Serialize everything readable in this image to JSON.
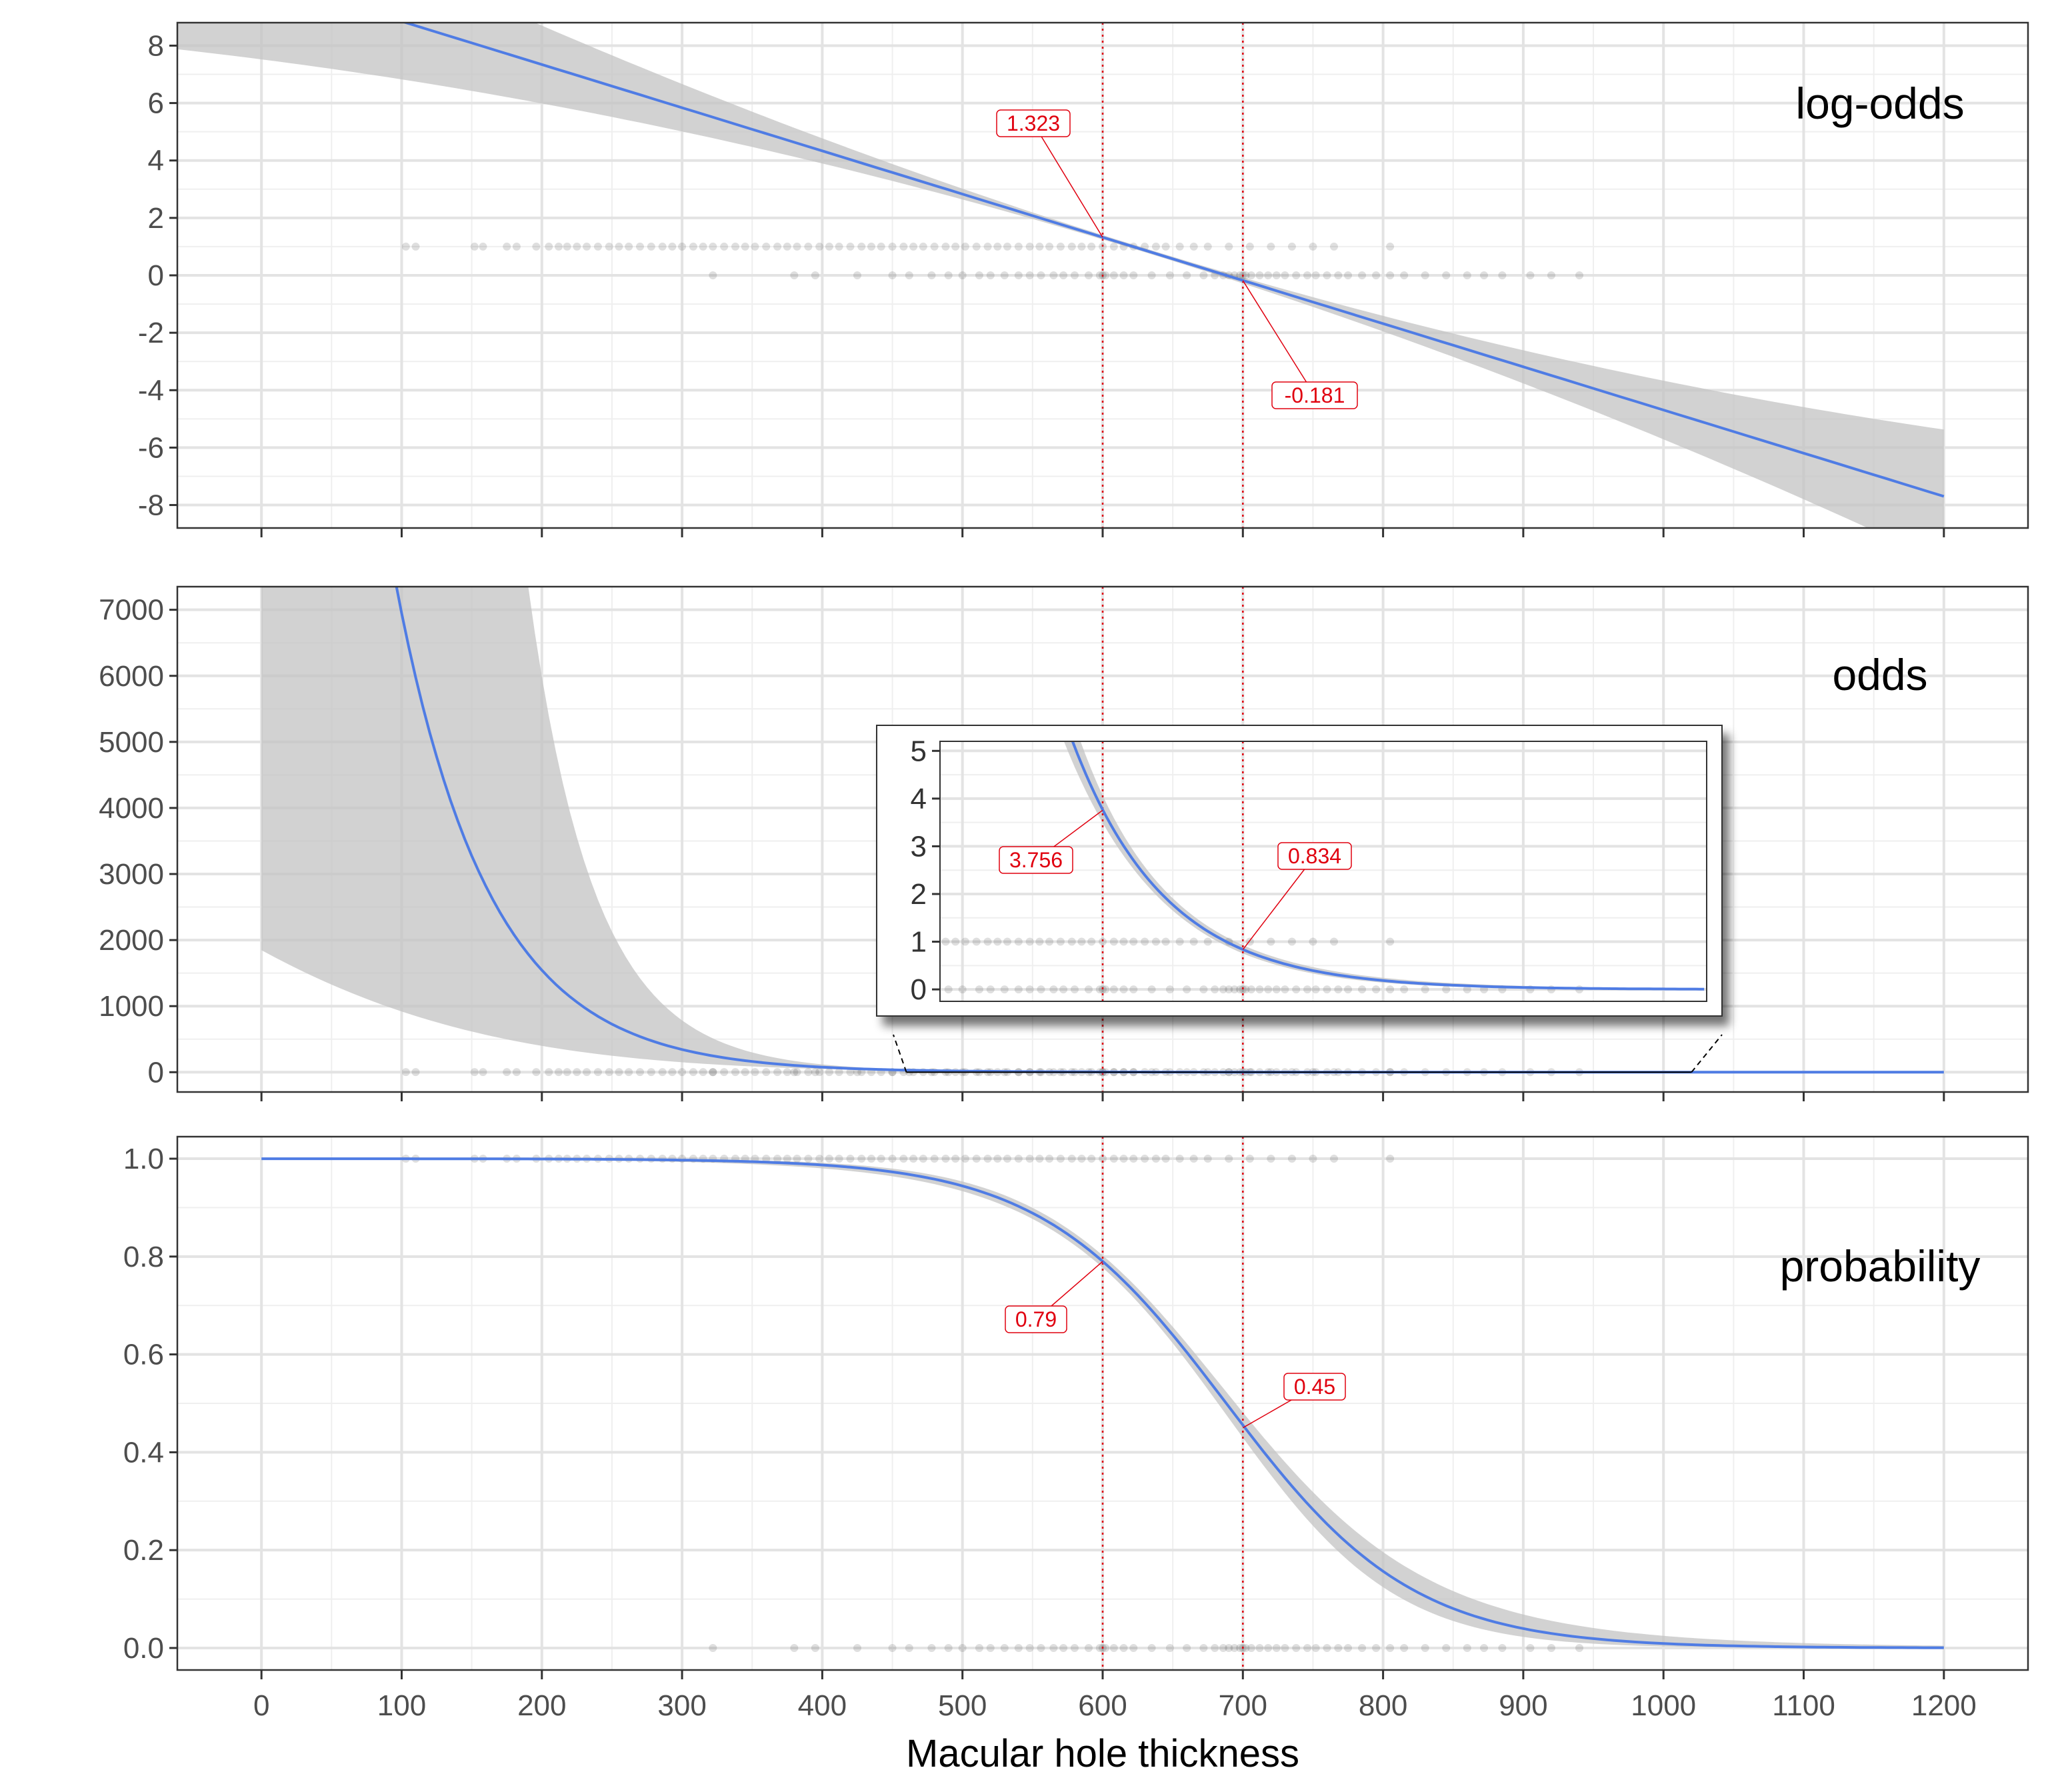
{
  "colors": {
    "line": "#4f7ce4",
    "ribbon": "#c3c3c3",
    "points": "#1a1a1a",
    "annotation": "#e0000f",
    "grid_major": "#e3e3e3",
    "grid_minor": "#efefef",
    "panel_border": "#333333"
  },
  "chart_data": [
    {
      "type": "line",
      "panel_label": "log-odds",
      "x_ticks": [
        "0",
        "100",
        "200",
        "300",
        "400",
        "500",
        "600",
        "700",
        "800",
        "900",
        "1000",
        "1100",
        "1200"
      ],
      "y_ticks": [
        "8",
        "6",
        "4",
        "2",
        "0",
        "-2",
        "-4",
        "-6",
        "-8"
      ],
      "ylim": [
        -8.8,
        8.8
      ],
      "xlim": [
        -60,
        1260
      ],
      "model": {
        "intercept": 10.35,
        "slope": -0.01504
      },
      "ribbon_halfwidth": {
        "at_center": 0.07,
        "center_x": 630,
        "growth": 6.95e-06
      },
      "series": [
        {
          "values_at": [
            0,
            600,
            700,
            1200
          ],
          "values": [
            10.35,
            1.323,
            -0.181,
            -7.7
          ]
        }
      ],
      "vlines": [
        600,
        700
      ],
      "annotations": [
        {
          "label": "1.323",
          "x": 600,
          "y": 1.323
        },
        {
          "label": "-0.181",
          "x": 700,
          "y": -0.181
        }
      ],
      "points": {
        "outcome_1_y": 1,
        "outcome_0_y": 0
      }
    },
    {
      "type": "line",
      "panel_label": "odds",
      "y_ticks": [
        "7000",
        "6000",
        "5000",
        "4000",
        "3000",
        "2000",
        "1000",
        "0"
      ],
      "ylim": [
        -300,
        7350
      ],
      "xlim": [
        -60,
        1260
      ],
      "series": [
        {
          "values_at": [
            100,
            200,
            300,
            400,
            600,
            700
          ],
          "values": [
            7320,
            1630,
            361,
            80,
            3.756,
            0.834
          ]
        }
      ],
      "vlines": [
        600,
        700
      ],
      "inset": {
        "x_range": [
          460,
          1020
        ],
        "y_ticks": [
          "5",
          "4",
          "3",
          "2",
          "1",
          "0"
        ],
        "ylim": [
          -0.25,
          5.2
        ],
        "annotations": [
          {
            "label": "3.756",
            "x": 600,
            "y": 3.756
          },
          {
            "label": "0.834",
            "x": 700,
            "y": 0.834
          }
        ]
      }
    },
    {
      "type": "line",
      "panel_label": "probability",
      "y_ticks": [
        "1.0",
        "0.8",
        "0.6",
        "0.4",
        "0.2",
        "0.0"
      ],
      "ylim": [
        -0.045,
        1.045
      ],
      "xlim": [
        -60,
        1260
      ],
      "xlabel": "Macular hole thickness",
      "series": [
        {
          "values_at": [
            0,
            600,
            700,
            1200
          ],
          "values": [
            1.0,
            0.79,
            0.45,
            0.0
          ]
        }
      ],
      "vlines": [
        600,
        700
      ],
      "annotations": [
        {
          "label": "0.79",
          "x": 600,
          "y": 0.79
        },
        {
          "label": "0.45",
          "x": 700,
          "y": 0.45
        }
      ]
    }
  ],
  "observations": {
    "outcome_1_x": [
      103,
      110,
      152,
      158,
      175,
      182,
      196,
      205,
      212,
      218,
      225,
      232,
      240,
      248,
      255,
      262,
      270,
      278,
      286,
      293,
      300,
      308,
      315,
      322,
      330,
      338,
      345,
      352,
      360,
      368,
      375,
      382,
      390,
      398,
      405,
      412,
      420,
      428,
      435,
      442,
      450,
      458,
      465,
      472,
      480,
      488,
      495,
      502,
      510,
      518,
      525,
      532,
      540,
      548,
      555,
      562,
      570,
      578,
      585,
      592,
      600,
      608,
      615,
      622,
      630,
      638,
      645,
      655,
      665,
      675,
      690,
      705,
      720,
      735,
      750,
      765,
      805
    ],
    "outcome_0_x": [
      322,
      380,
      395,
      425,
      450,
      462,
      478,
      490,
      500,
      512,
      520,
      530,
      540,
      548,
      556,
      565,
      572,
      580,
      590,
      598,
      600,
      602,
      608,
      615,
      622,
      635,
      648,
      660,
      672,
      680,
      686,
      690,
      694,
      698,
      700,
      702,
      706,
      712,
      718,
      724,
      730,
      738,
      746,
      752,
      760,
      768,
      775,
      785,
      795,
      805,
      815,
      830,
      845,
      860,
      872,
      885,
      905,
      920,
      940
    ]
  }
}
